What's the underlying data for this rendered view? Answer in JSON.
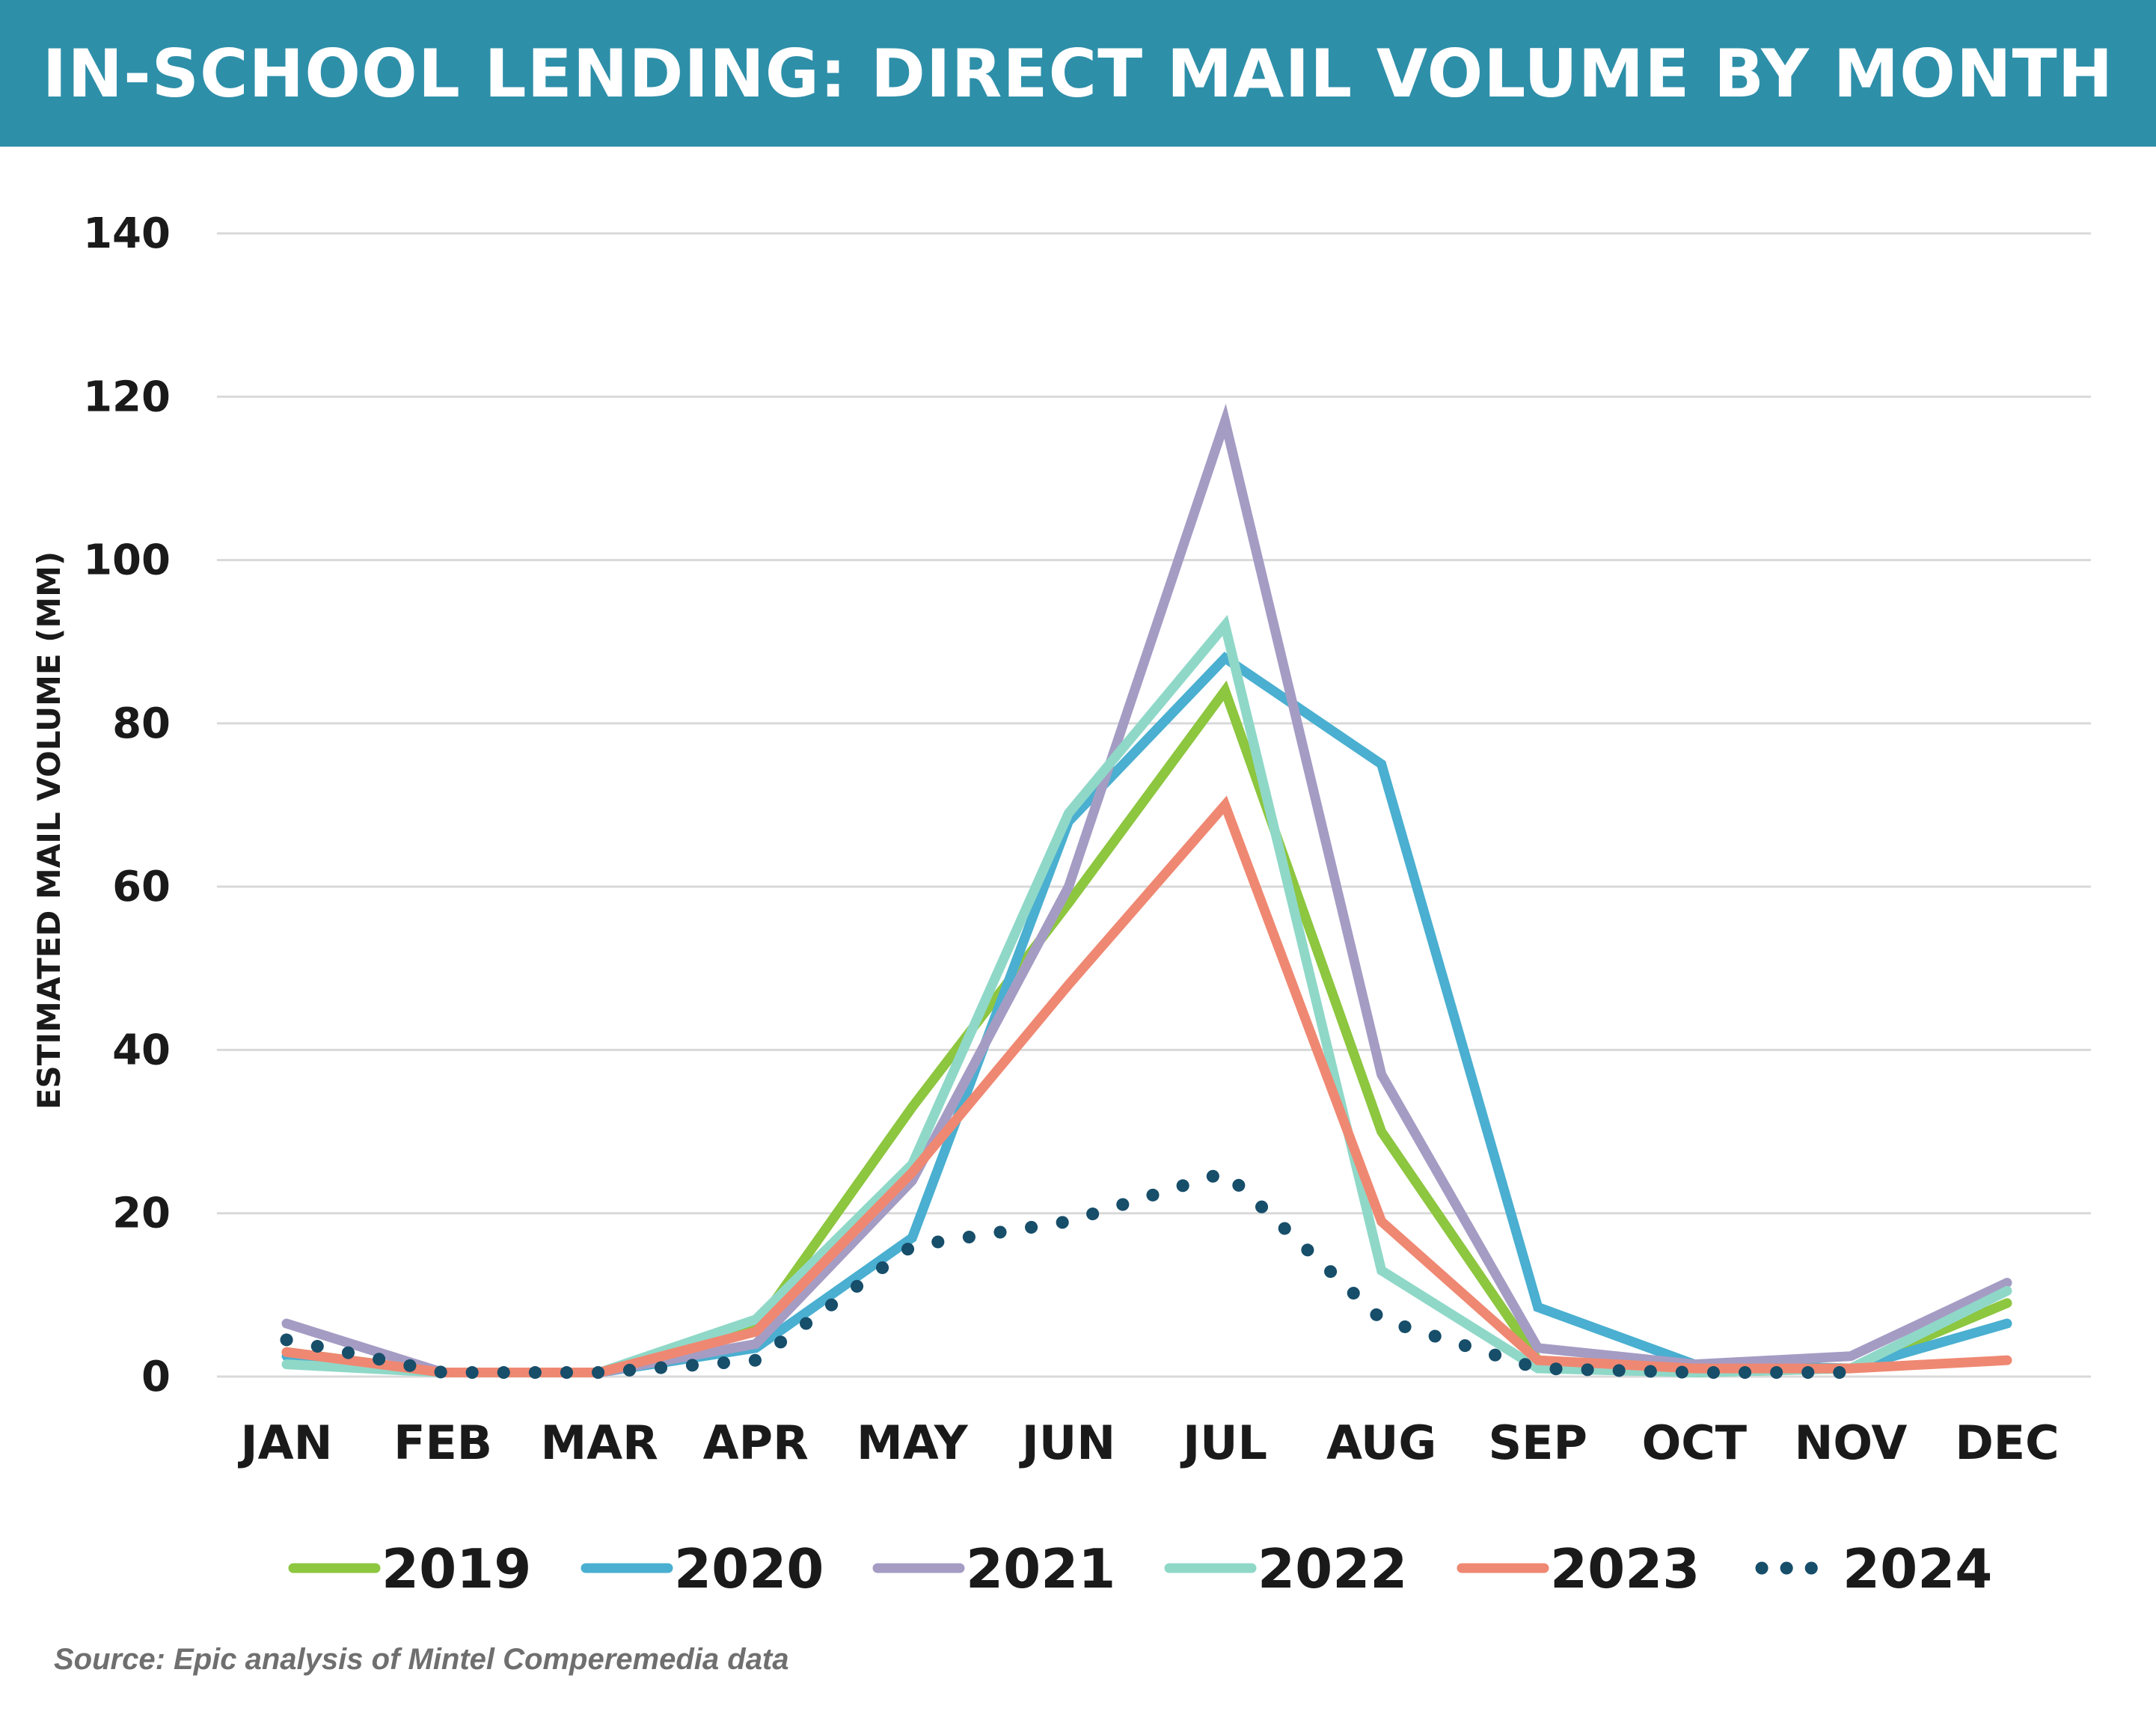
{
  "title": "IN-SCHOOL LENDING: DIRECT MAIL VOLUME BY MONTH",
  "source": "Source: Epic analysis of Mintel Comperemedia data",
  "chart_data": {
    "type": "line",
    "title": "IN-SCHOOL LENDING: DIRECT MAIL VOLUME BY MONTH",
    "xlabel": "",
    "ylabel": "ESTIMATED MAIL VOLUME (MM)",
    "ylim": [
      0,
      140
    ],
    "yticks": [
      0,
      20,
      40,
      60,
      80,
      100,
      120,
      140
    ],
    "grid": true,
    "legend": "bottom",
    "categories": [
      "JAN",
      "FEB",
      "MAR",
      "APR",
      "MAY",
      "JUN",
      "JUL",
      "AUG",
      "SEP",
      "OCT",
      "NOV",
      "DEC"
    ],
    "series": [
      {
        "name": "2019",
        "color": "#8dc63f",
        "style": "solid",
        "values": [
          3,
          0.5,
          0.5,
          6,
          33,
          58,
          84,
          30,
          2,
          0.5,
          1,
          9
        ]
      },
      {
        "name": "2020",
        "color": "#4aafd0",
        "style": "solid",
        "values": [
          2.5,
          0.5,
          0.5,
          3.5,
          17,
          68,
          88,
          75,
          8.5,
          1.5,
          1,
          6.5
        ]
      },
      {
        "name": "2021",
        "color": "#a59cc4",
        "style": "solid",
        "values": [
          6.5,
          0.5,
          0.5,
          4,
          24,
          60,
          117,
          37,
          3.5,
          1.5,
          2.5,
          11.5
        ]
      },
      {
        "name": "2022",
        "color": "#8fd8c8",
        "style": "solid",
        "values": [
          1.5,
          0.5,
          0.5,
          7,
          26,
          69,
          92,
          13,
          1,
          0.5,
          1,
          10.5
        ]
      },
      {
        "name": "2023",
        "color": "#ef8872",
        "style": "solid",
        "values": [
          3,
          0.5,
          0.5,
          5.5,
          25,
          48,
          70,
          19,
          2,
          1,
          1,
          2
        ]
      },
      {
        "name": "2024",
        "color": "#174e6a",
        "style": "dotted",
        "values": [
          4.5,
          0.5,
          0.5,
          2,
          16,
          19,
          25,
          7,
          1,
          0.5,
          0.5,
          null
        ]
      }
    ]
  }
}
